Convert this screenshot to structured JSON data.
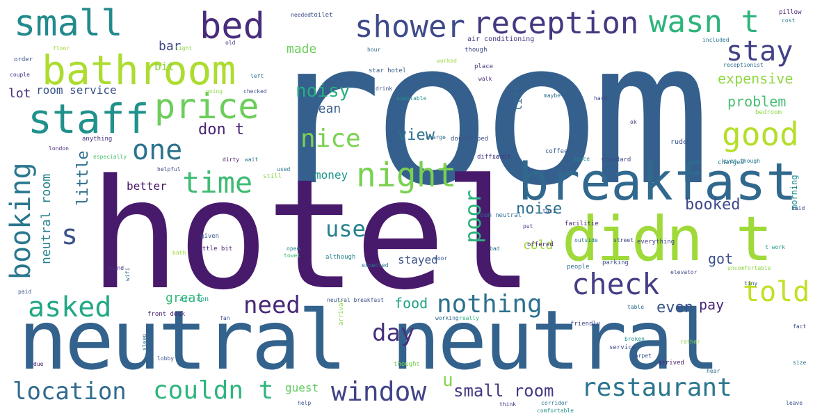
{
  "words": [
    {
      "text": "room",
      "color": "#35608d"
    },
    {
      "text": "hotel",
      "color": "#481a6c"
    },
    {
      "text": "neutral neutral",
      "color": "#33628d"
    },
    {
      "text": "breakfast",
      "color": "#31688e"
    },
    {
      "text": "didn t",
      "color": "#9fda3a"
    },
    {
      "text": "bathroom",
      "color": "#addc30"
    },
    {
      "text": "small",
      "color": "#238a8d"
    },
    {
      "text": "bed",
      "color": "#472d7b"
    },
    {
      "text": "shower",
      "color": "#3e4a89"
    },
    {
      "text": "reception",
      "color": "#453781"
    },
    {
      "text": "wasn t",
      "color": "#2eb37c"
    },
    {
      "text": "stay",
      "color": "#424086"
    },
    {
      "text": "staff",
      "color": "#21918c"
    },
    {
      "text": "price",
      "color": "#6ccd5a"
    },
    {
      "text": "one",
      "color": "#2c728e"
    },
    {
      "text": "nice",
      "color": "#7ad151"
    },
    {
      "text": "good",
      "color": "#b5de2b"
    },
    {
      "text": "time",
      "color": "#3fbc73"
    },
    {
      "text": "night",
      "color": "#7ad151"
    },
    {
      "text": "booking",
      "color": "#2a778e"
    },
    {
      "text": "s",
      "color": "#3b528b"
    },
    {
      "text": "check",
      "color": "#433e85"
    },
    {
      "text": "told",
      "color": "#c2df23"
    },
    {
      "text": "asked",
      "color": "#22a785"
    },
    {
      "text": "need",
      "color": "#482878"
    },
    {
      "text": "nothing",
      "color": "#2d708e"
    },
    {
      "text": "day",
      "color": "#46307e"
    },
    {
      "text": "location",
      "color": "#306a8e"
    },
    {
      "text": "couldn t",
      "color": "#2fb47c"
    },
    {
      "text": "window",
      "color": "#414487"
    },
    {
      "text": "restaurant",
      "color": "#2b758e"
    },
    {
      "text": "small room",
      "color": "#453882"
    },
    {
      "text": "poor",
      "color": "#2db27d"
    },
    {
      "text": "use",
      "color": "#26818e"
    },
    {
      "text": "noisy",
      "color": "#27ad81"
    },
    {
      "text": "expensive",
      "color": "#90d743"
    },
    {
      "text": "problem",
      "color": "#44bf70"
    },
    {
      "text": "booked",
      "color": "#3e4989"
    },
    {
      "text": "don t",
      "color": "#482475"
    },
    {
      "text": "view",
      "color": "#2c738e"
    },
    {
      "text": "clean",
      "color": "#365d8d"
    },
    {
      "text": "money",
      "color": "#1f958b"
    },
    {
      "text": "noise",
      "color": "#2d718e"
    },
    {
      "text": "better",
      "color": "#471365"
    },
    {
      "text": "little",
      "color": "#2e6e8e"
    },
    {
      "text": "neutral room",
      "color": "#25838e"
    },
    {
      "text": "food",
      "color": "#20a386"
    },
    {
      "text": "even",
      "color": "#3a538b"
    },
    {
      "text": "pay",
      "color": "#482576"
    },
    {
      "text": "got",
      "color": "#3b518b"
    },
    {
      "text": "cold",
      "color": "#9bd93c"
    },
    {
      "text": "stayed",
      "color": "#3b518b"
    },
    {
      "text": "great",
      "color": "#35b779"
    },
    {
      "text": "guest",
      "color": "#63cb5f"
    },
    {
      "text": "u",
      "color": "#86d549"
    },
    {
      "text": "lot",
      "color": "#472c7a"
    },
    {
      "text": "room service",
      "color": "#3a538b"
    },
    {
      "text": "bar",
      "color": "#3e4a89"
    },
    {
      "text": "made",
      "color": "#6ccd5a"
    },
    {
      "text": "bit",
      "color": "#8bd646"
    },
    {
      "text": "lift",
      "color": "#31688e"
    },
    {
      "text": "morning",
      "color": "#21918c"
    },
    {
      "text": "air conditioning",
      "color": "#46307e"
    },
    {
      "text": "coffee",
      "color": "#365c8d"
    },
    {
      "text": "rude",
      "color": "#3b528b"
    },
    {
      "text": "charged",
      "color": "#2a778e"
    },
    {
      "text": "standard",
      "color": "#3e4989"
    },
    {
      "text": "difficult",
      "color": "#46337f"
    },
    {
      "text": "space",
      "color": "#25848e"
    },
    {
      "text": "anything",
      "color": "#46307e"
    },
    {
      "text": "london",
      "color": "#472f7d"
    },
    {
      "text": "especially",
      "color": "#4ac16d"
    },
    {
      "text": "helpful",
      "color": "#3e4989"
    },
    {
      "text": "dirty",
      "color": "#471063"
    },
    {
      "text": "wait",
      "color": "#2a778e"
    },
    {
      "text": "still",
      "color": "#8bd646"
    },
    {
      "text": "used",
      "color": "#2a778e"
    },
    {
      "text": "room neutral",
      "color": "#2f6c8e"
    },
    {
      "text": "bath",
      "color": "#a2da37"
    },
    {
      "text": "little bit",
      "color": "#481d6f"
    },
    {
      "text": "given",
      "color": "#3a538b"
    },
    {
      "text": "open",
      "color": "#27808e"
    },
    {
      "text": "towel",
      "color": "#3fbc73"
    },
    {
      "text": "although",
      "color": "#25858e"
    },
    {
      "text": "expected",
      "color": "#2a768e"
    },
    {
      "text": "door",
      "color": "#39558c"
    },
    {
      "text": "bad",
      "color": "#2c718e"
    },
    {
      "text": "put",
      "color": "#46327e"
    },
    {
      "text": "facilitie",
      "color": "#482576"
    },
    {
      "text": "offered",
      "color": "#481f70"
    },
    {
      "text": "outside",
      "color": "#2a768e"
    },
    {
      "text": "street",
      "color": "#424086"
    },
    {
      "text": "everything",
      "color": "#433e85"
    },
    {
      "text": "parking",
      "color": "#3d4e8a"
    },
    {
      "text": "people",
      "color": "#2f6b8e"
    },
    {
      "text": "elevator",
      "color": "#3e4a89"
    },
    {
      "text": "air con",
      "color": "#20a486"
    },
    {
      "text": "neutral breakfast",
      "color": "#3b528b"
    },
    {
      "text": "front desk",
      "color": "#481f70"
    },
    {
      "text": "working",
      "color": "#2f6c8e"
    },
    {
      "text": "really",
      "color": "#2fb47c"
    },
    {
      "text": "arrival",
      "color": "#8bd646"
    },
    {
      "text": "service",
      "color": "#3e4989"
    },
    {
      "text": "carpet",
      "color": "#3a538b"
    },
    {
      "text": "arrived",
      "color": "#481d6f"
    },
    {
      "text": "hear",
      "color": "#2f6b8e"
    },
    {
      "text": "thought",
      "color": "#7ad151"
    },
    {
      "text": "help",
      "color": "#3b528b"
    },
    {
      "text": "think",
      "color": "#46307e"
    },
    {
      "text": "corridor",
      "color": "#2a778e"
    },
    {
      "text": "comfortable",
      "color": "#21918c"
    },
    {
      "text": "lobby",
      "color": "#3b528b"
    },
    {
      "text": "sleep",
      "color": "#2e6e8e"
    },
    {
      "text": "due",
      "color": "#471365"
    },
    {
      "text": "paid",
      "color": "#3b528b"
    },
    {
      "text": "found",
      "color": "#472f7d"
    },
    {
      "text": "needed",
      "color": "#3e4989"
    },
    {
      "text": "toilet",
      "color": "#3b528b"
    },
    {
      "text": "pillow",
      "color": "#481a6c"
    },
    {
      "text": "cost",
      "color": "#2c728e"
    },
    {
      "text": "included",
      "color": "#2a778e"
    },
    {
      "text": "receptionist",
      "color": "#2f6c8e"
    },
    {
      "text": "star hotel",
      "color": "#365d8d"
    },
    {
      "text": "drink",
      "color": "#3b528b"
    },
    {
      "text": "place",
      "color": "#46307e"
    },
    {
      "text": "walk",
      "color": "#472c7a"
    },
    {
      "text": "available",
      "color": "#21918c"
    },
    {
      "text": "double bed",
      "color": "#3b528b"
    },
    {
      "text": "charge",
      "color": "#31688e"
    },
    {
      "text": "hard",
      "color": "#3e4989"
    },
    {
      "text": "wifi",
      "color": "#2f6b8e"
    },
    {
      "text": "order",
      "color": "#3b528b"
    },
    {
      "text": "floor",
      "color": "#a2da37"
    },
    {
      "text": "couple",
      "color": "#46307e"
    },
    {
      "text": "left",
      "color": "#2a778e"
    },
    {
      "text": "going",
      "color": "#8bd646"
    },
    {
      "text": "checked",
      "color": "#3b528b"
    },
    {
      "text": "hour",
      "color": "#2e6e8e"
    },
    {
      "text": "though",
      "color": "#3e4989"
    },
    {
      "text": "worked",
      "color": "#9bd93c"
    },
    {
      "text": "light",
      "color": "#8bd646"
    },
    {
      "text": "old",
      "color": "#46307e"
    },
    {
      "text": "call",
      "color": "#3e4989"
    },
    {
      "text": "even though",
      "color": "#2a778e"
    },
    {
      "text": "uncomfortable",
      "color": "#8bd646"
    },
    {
      "text": "said",
      "color": "#3b528b"
    },
    {
      "text": "broken",
      "color": "#21918c"
    },
    {
      "text": "table",
      "color": "#2f6b8e"
    },
    {
      "text": "bedroom",
      "color": "#8bd646"
    },
    {
      "text": "fact",
      "color": "#3e4989"
    },
    {
      "text": "leave",
      "color": "#3b528b"
    },
    {
      "text": "size",
      "color": "#2a778e"
    },
    {
      "text": "friendly",
      "color": "#3e4989"
    },
    {
      "text": "maybe",
      "color": "#2e6e8e"
    },
    {
      "text": "ok",
      "color": "#46307e"
    },
    {
      "text": "tiny",
      "color": "#3b528b"
    },
    {
      "text": "t work",
      "color": "#21918c"
    },
    {
      "text": "fan",
      "color": "#3e4989"
    },
    {
      "text": "taxi",
      "color": "#3b528b"
    },
    {
      "text": "rather",
      "color": "#8bd646"
    }
  ]
}
